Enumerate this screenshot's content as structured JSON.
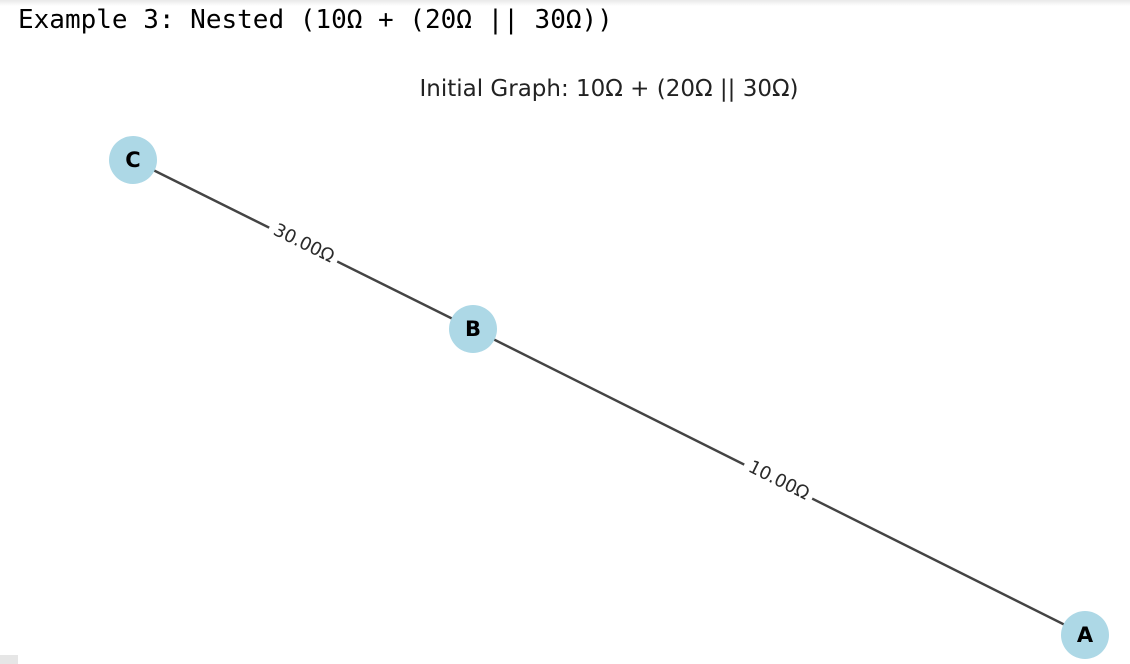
{
  "output_header": "Example 3: Nested (10Ω + (20Ω || 30Ω))",
  "graph": {
    "title": "Initial Graph: 10Ω + (20Ω || 30Ω)",
    "colors": {
      "node_fill": "#add8e6",
      "edge": "#444444",
      "text": "#000000"
    },
    "nodes": [
      {
        "id": "C",
        "label": "C"
      },
      {
        "id": "B",
        "label": "B"
      },
      {
        "id": "A",
        "label": "A"
      }
    ],
    "edges": [
      {
        "from": "C",
        "to": "B",
        "label": "30.00Ω"
      },
      {
        "from": "B",
        "to": "A",
        "label": "10.00Ω"
      }
    ]
  }
}
